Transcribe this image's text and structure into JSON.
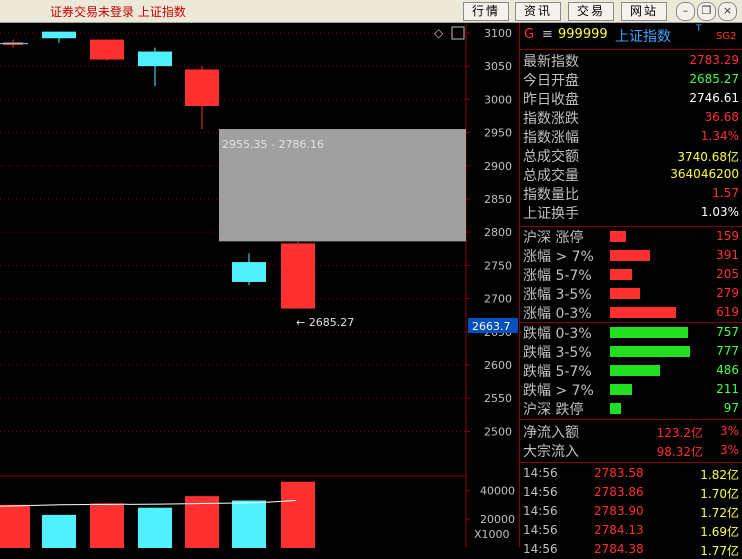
{
  "title_bar": {
    "title": "证券交易未登录 上证指数",
    "buttons": [
      "行情",
      "资讯",
      "交易",
      "网站"
    ]
  },
  "chart": {
    "y_ticks": [
      "3100",
      "3050",
      "3000",
      "2950",
      "2900",
      "2850",
      "2800",
      "2750",
      "2700",
      "2650",
      "2600",
      "2550",
      "2500"
    ],
    "range_label": "2955.35 - 2786.16",
    "low_label": "2685.27",
    "current_price": "2663.7",
    "vol_ticks": [
      "40000",
      "20000"
    ],
    "vol_unit": "X1000",
    "diamond_glyph": "◇",
    "chart_data": {
      "type": "candlestick",
      "y_range": [
        2475,
        3115
      ],
      "candles": [
        {
          "open": 3082,
          "close": 3086,
          "high": 3090,
          "low": 3078
        },
        {
          "open": 3102,
          "close": 3092,
          "high": 3102,
          "low": 3085
        },
        {
          "open": 3060,
          "close": 3090,
          "high": 3090,
          "low": 3058
        },
        {
          "open": 3072,
          "close": 3050,
          "high": 3078,
          "low": 3020
        },
        {
          "open": 2990,
          "close": 3045,
          "high": 3050,
          "low": 2955
        },
        {
          "open": 2790,
          "close": 2955,
          "high": 2955,
          "low": 2786
        },
        {
          "open": 2755,
          "close": 2725,
          "high": 2768,
          "low": 2720
        },
        {
          "open": 2685,
          "close": 2783,
          "high": 2786,
          "low": 2685
        }
      ],
      "volumes": [
        30000,
        23000,
        31000,
        28000,
        36000,
        27000,
        33000,
        46000
      ],
      "vol_range": [
        0,
        50000
      ],
      "colors": {
        "up": "#ff3030",
        "down": "#50f0ff",
        "gap": "#a0a0a0",
        "grid": "#8b0000"
      }
    }
  },
  "panel": {
    "header": {
      "g": "G",
      "menu": "≡",
      "code": "999999",
      "name": "上证指数",
      "sup": "T",
      "tag": "SG2"
    },
    "stats": [
      {
        "label": "最新指数",
        "value": "2783.29",
        "color": "#ff3030"
      },
      {
        "label": "今日开盘",
        "value": "2685.27",
        "color": "#40ff40"
      },
      {
        "label": "昨日收盘",
        "value": "2746.61",
        "color": "#ffffff"
      },
      {
        "label": "指数涨跌",
        "value": "36.68",
        "color": "#ff3030"
      },
      {
        "label": "指数涨幅",
        "value": "1.34%",
        "color": "#ff3030"
      },
      {
        "label": "总成交额",
        "value": "3740.68亿",
        "color": "#ffff40"
      },
      {
        "label": "总成交量",
        "value": "364046200",
        "color": "#ffff40"
      },
      {
        "label": "指数量比",
        "value": "1.57",
        "color": "#ff3030"
      },
      {
        "label": "上证换手",
        "value": "1.03%",
        "color": "#ffffff"
      }
    ],
    "up_dist": [
      {
        "label": "沪深 涨停",
        "count": "159",
        "fraction": 0.2
      },
      {
        "label": "涨幅 > 7%",
        "count": "391",
        "fraction": 0.5
      },
      {
        "label": "涨幅 5-7%",
        "count": "205",
        "fraction": 0.27
      },
      {
        "label": "涨幅 3-5%",
        "count": "279",
        "fraction": 0.37
      },
      {
        "label": "涨幅 0-3%",
        "count": "619",
        "fraction": 0.82
      }
    ],
    "down_dist": [
      {
        "label": "跌幅 0-3%",
        "count": "757",
        "fraction": 0.97
      },
      {
        "label": "跌幅 3-5%",
        "count": "777",
        "fraction": 1.0
      },
      {
        "label": "跌幅 5-7%",
        "count": "486",
        "fraction": 0.63
      },
      {
        "label": "跌幅 > 7%",
        "count": "211",
        "fraction": 0.28
      },
      {
        "label": "沪深 跌停",
        "count": "97",
        "fraction": 0.14
      }
    ],
    "flows": [
      {
        "label": "净流入额",
        "amount": "123.2亿",
        "pct": "3%"
      },
      {
        "label": "大宗流入",
        "amount": "98.32亿",
        "pct": "3%"
      }
    ],
    "ticks": [
      {
        "time": "14:56",
        "price": "2783.58",
        "vol": "1.82亿"
      },
      {
        "time": "14:56",
        "price": "2783.86",
        "vol": "1.70亿"
      },
      {
        "time": "14:56",
        "price": "2783.90",
        "vol": "1.72亿"
      },
      {
        "time": "14:56",
        "price": "2784.13",
        "vol": "1.69亿"
      },
      {
        "time": "14:56",
        "price": "2784.38",
        "vol": "1.77亿"
      }
    ]
  }
}
